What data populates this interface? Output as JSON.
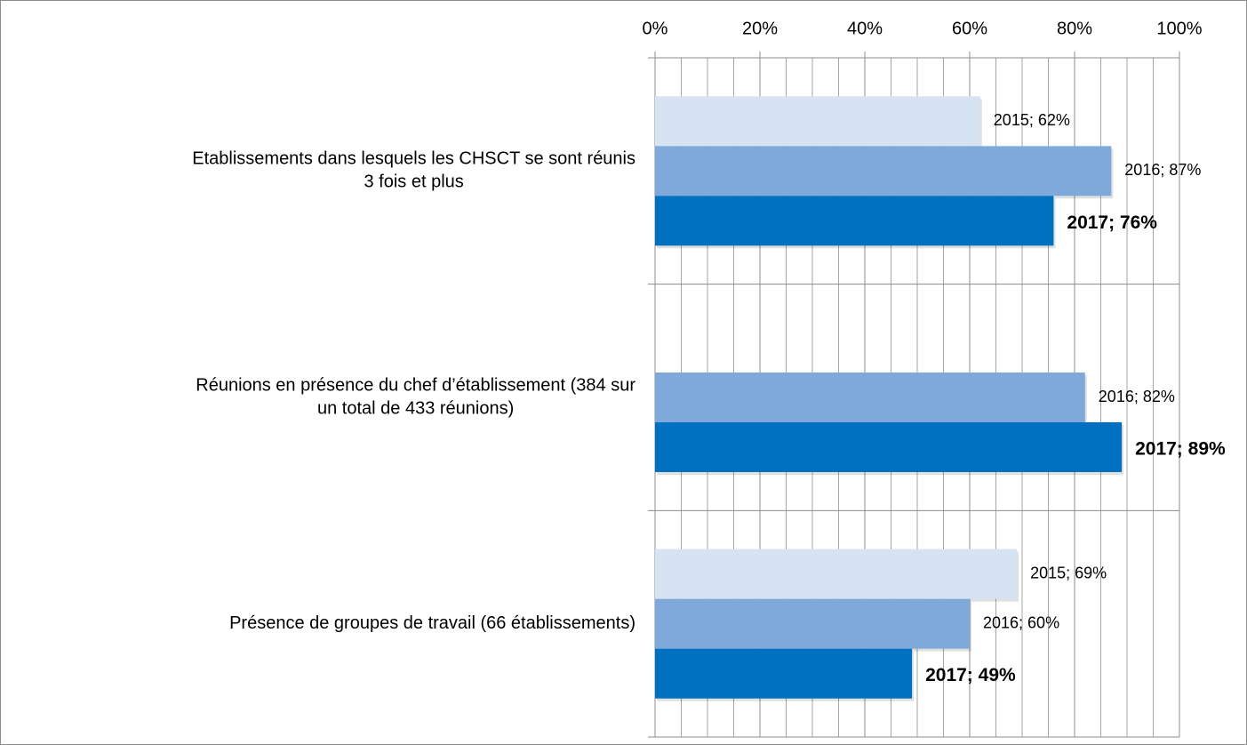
{
  "chart_data": {
    "type": "hbar",
    "categories": [
      [
        "Etablissements dans lesquels les CHSCT se sont réunis",
        "3 fois et plus"
      ],
      [
        "Réunions en présence du chef d’établissement (384 sur",
        "un total de 433 réunions)"
      ],
      [
        "Présence de groupes de travail (66 établissements)"
      ]
    ],
    "series": [
      {
        "name": "2015",
        "color": "#d6e3f2",
        "values": [
          62,
          null,
          69
        ],
        "value_labels": [
          "2015; 62%",
          null,
          "2015; 69%"
        ],
        "label_bold": false
      },
      {
        "name": "2016",
        "color": "#7fa9da",
        "values": [
          87,
          82,
          60
        ],
        "value_labels": [
          "2016; 87%",
          "2016; 82%",
          "2016; 60%"
        ],
        "label_bold": false
      },
      {
        "name": "2017",
        "color": "#0070c0",
        "values": [
          76,
          89,
          49
        ],
        "value_labels": [
          "2017; 76%",
          "2017; 89%",
          "2017; 49%"
        ],
        "label_bold": true
      }
    ],
    "xlim": [
      0,
      100
    ],
    "xticks": [
      {
        "value": 0,
        "label": "0%"
      },
      {
        "value": 20,
        "label": "20%"
      },
      {
        "value": 40,
        "label": "40%"
      },
      {
        "value": 60,
        "label": "60%"
      },
      {
        "value": 80,
        "label": "80%"
      },
      {
        "value": 100,
        "label": "100%"
      }
    ],
    "xminorticks": [
      5,
      10,
      15,
      25,
      30,
      35,
      45,
      50,
      55,
      65,
      70,
      75,
      85,
      90,
      95
    ],
    "grid": true
  }
}
